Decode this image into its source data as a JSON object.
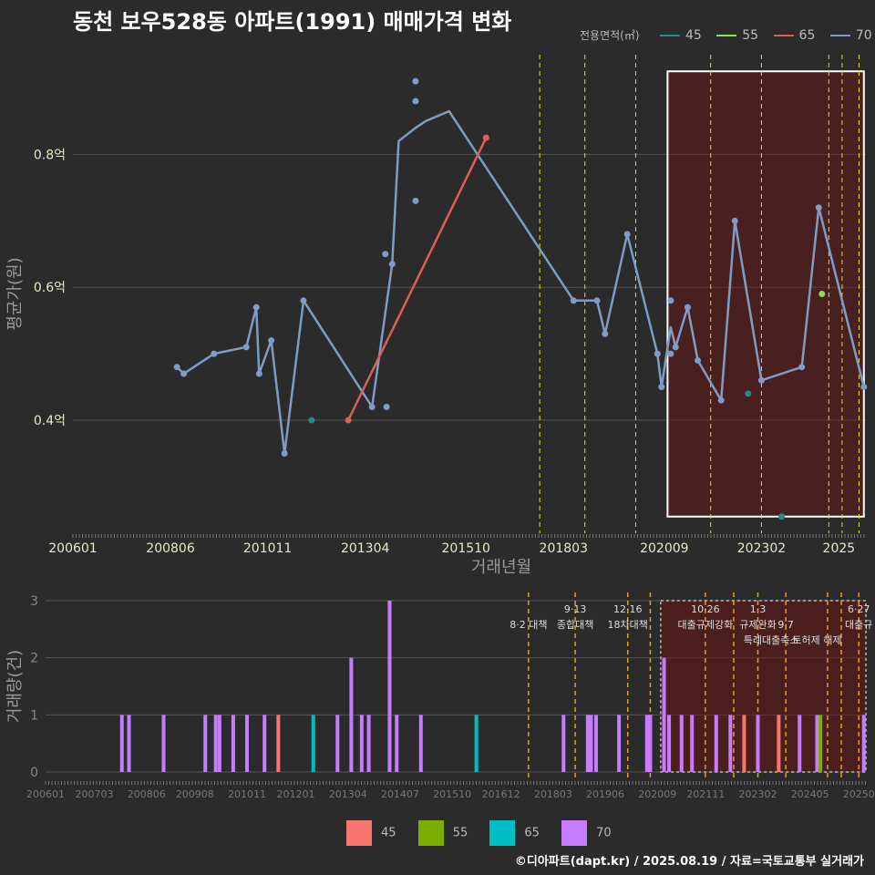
{
  "title": "동천 보우528동 아파트(1991) 매매가격 변화",
  "footer": "©디아파트(dapt.kr) / 2025.08.19 / 자료=국토교통부 실거래가",
  "colors": {
    "45": "#f8766d",
    "55": "#7cae00",
    "65": "#00bfc4",
    "70": "#c77cff"
  },
  "line_colors": {
    "45": "#2a8a8a",
    "55": "#8ee05a",
    "65": "#d95f5f",
    "70": "#7f9cc4"
  },
  "legend_title": "전용면적(㎡)",
  "legend_items": [
    "45",
    "55",
    "65",
    "70"
  ],
  "chart_data": [
    {
      "type": "line",
      "ylabel": "평균가(원)",
      "xlabel": "거래년월",
      "ytick_labels": [
        "0.4억",
        "0.6억",
        "0.8억"
      ],
      "yticks": [
        0.4,
        0.6,
        0.8
      ],
      "ylim": [
        0.23,
        0.95
      ],
      "xlim": [
        2006.0,
        2025.67
      ],
      "xtick_labels": [
        "200601",
        "200806",
        "201011",
        "201304",
        "201510",
        "201803",
        "202009",
        "202302",
        "2025"
      ],
      "xticks": [
        2006.0,
        2008.42,
        2010.83,
        2013.25,
        2015.75,
        2018.17,
        2020.67,
        2023.08,
        2025.0
      ],
      "grid": true,
      "legend": "top-right",
      "series": [
        {
          "name": "70",
          "line": [
            [
              2008.58,
              0.48
            ],
            [
              2008.75,
              0.47
            ],
            [
              2009.5,
              0.5
            ],
            [
              2010.3,
              0.51
            ],
            [
              2010.55,
              0.57
            ],
            [
              2010.62,
              0.47
            ],
            [
              2010.92,
              0.52
            ],
            [
              2011.25,
              0.35
            ],
            [
              2011.72,
              0.58
            ],
            [
              2013.42,
              0.42
            ],
            [
              2013.92,
              0.635
            ],
            [
              2014.08,
              0.82
            ],
            [
              2014.5,
              0.84
            ],
            [
              2014.75,
              0.85
            ],
            [
              2015.33,
              0.865
            ],
            [
              2018.42,
              0.58
            ],
            [
              2019.0,
              0.58
            ],
            [
              2019.2,
              0.53
            ],
            [
              2019.75,
              0.68
            ],
            [
              2020.5,
              0.5
            ],
            [
              2020.6,
              0.45
            ],
            [
              2020.83,
              0.54
            ],
            [
              2020.95,
              0.51
            ],
            [
              2021.25,
              0.57
            ],
            [
              2021.5,
              0.49
            ],
            [
              2022.08,
              0.43
            ],
            [
              2022.42,
              0.7
            ],
            [
              2023.08,
              0.46
            ],
            [
              2024.08,
              0.48
            ],
            [
              2024.5,
              0.72
            ],
            [
              2025.62,
              0.45
            ]
          ],
          "points": [
            [
              2008.58,
              0.48
            ],
            [
              2008.75,
              0.47
            ],
            [
              2009.5,
              0.5
            ],
            [
              2010.3,
              0.51
            ],
            [
              2010.55,
              0.57
            ],
            [
              2010.62,
              0.47
            ],
            [
              2010.92,
              0.52
            ],
            [
              2011.25,
              0.35
            ],
            [
              2011.72,
              0.58
            ],
            [
              2013.42,
              0.42
            ],
            [
              2013.75,
              0.65
            ],
            [
              2013.78,
              0.42
            ],
            [
              2013.92,
              0.635
            ],
            [
              2014.5,
              0.91
            ],
            [
              2014.5,
              0.88
            ],
            [
              2014.5,
              0.73
            ],
            [
              2018.42,
              0.58
            ],
            [
              2019.0,
              0.58
            ],
            [
              2019.2,
              0.53
            ],
            [
              2019.75,
              0.68
            ],
            [
              2020.5,
              0.5
            ],
            [
              2020.6,
              0.45
            ],
            [
              2020.83,
              0.5
            ],
            [
              2020.83,
              0.58
            ],
            [
              2020.95,
              0.51
            ],
            [
              2021.25,
              0.57
            ],
            [
              2021.5,
              0.49
            ],
            [
              2022.08,
              0.43
            ],
            [
              2022.42,
              0.7
            ],
            [
              2023.08,
              0.46
            ],
            [
              2024.08,
              0.48
            ],
            [
              2024.5,
              0.72
            ],
            [
              2025.62,
              0.45
            ]
          ]
        },
        {
          "name": "65",
          "line": [
            [
              2012.83,
              0.4
            ],
            [
              2016.25,
              0.825
            ]
          ],
          "points": [
            [
              2012.83,
              0.4
            ],
            [
              2016.25,
              0.825
            ]
          ]
        },
        {
          "name": "55",
          "line": [],
          "points": [
            [
              2024.58,
              0.59
            ]
          ]
        },
        {
          "name": "45",
          "line": [],
          "points": [
            [
              2011.92,
              0.4
            ],
            [
              2022.75,
              0.44
            ],
            [
              2023.58,
              0.255
            ]
          ]
        }
      ],
      "vlines": [
        2017.58,
        2018.7,
        2019.96,
        2021.82,
        2023.08,
        2024.75,
        2025.08,
        2025.5
      ],
      "highlight_box": [
        2020.75,
        2025.62,
        0.255,
        0.925
      ]
    },
    {
      "type": "bar",
      "ylabel": "거래량(건)",
      "yticks": [
        0,
        1,
        2,
        3
      ],
      "ytick_labels": [
        "0",
        "1",
        "2",
        "3"
      ],
      "xtick_labels": [
        "200601",
        "200703",
        "200806",
        "200908",
        "201011",
        "201201",
        "201304",
        "201407",
        "201510",
        "201612",
        "201803",
        "201906",
        "202009",
        "202111",
        "202302",
        "202405",
        "20250"
      ],
      "xticks": [
        2006.0,
        2007.17,
        2008.42,
        2009.58,
        2010.83,
        2012.0,
        2013.25,
        2014.5,
        2015.75,
        2016.92,
        2018.17,
        2019.42,
        2020.67,
        2021.83,
        2023.08,
        2024.33,
        2025.5
      ],
      "xlim": [
        2006.0,
        2025.67
      ],
      "bars": [
        {
          "x": 2007.83,
          "v": 1,
          "s": "70"
        },
        {
          "x": 2008.0,
          "v": 1,
          "s": "70"
        },
        {
          "x": 2008.83,
          "v": 1,
          "s": "70"
        },
        {
          "x": 2009.83,
          "v": 1,
          "s": "70"
        },
        {
          "x": 2010.08,
          "v": 1,
          "s": "70"
        },
        {
          "x": 2010.17,
          "v": 1,
          "s": "70"
        },
        {
          "x": 2010.5,
          "v": 1,
          "s": "70"
        },
        {
          "x": 2010.83,
          "v": 1,
          "s": "70"
        },
        {
          "x": 2011.25,
          "v": 1,
          "s": "70"
        },
        {
          "x": 2011.58,
          "v": 1,
          "s": "45"
        },
        {
          "x": 2012.42,
          "v": 1,
          "s": "65"
        },
        {
          "x": 2013.0,
          "v": 1,
          "s": "70"
        },
        {
          "x": 2013.33,
          "v": 2,
          "s": "70"
        },
        {
          "x": 2013.58,
          "v": 1,
          "s": "70"
        },
        {
          "x": 2013.75,
          "v": 1,
          "s": "70"
        },
        {
          "x": 2014.25,
          "v": 3,
          "s": "70"
        },
        {
          "x": 2014.42,
          "v": 1,
          "s": "70"
        },
        {
          "x": 2015.0,
          "v": 1,
          "s": "70"
        },
        {
          "x": 2016.33,
          "v": 1,
          "s": "65"
        },
        {
          "x": 2018.42,
          "v": 1,
          "s": "70"
        },
        {
          "x": 2019.0,
          "v": 1,
          "s": "70"
        },
        {
          "x": 2019.08,
          "v": 1,
          "s": "70"
        },
        {
          "x": 2019.2,
          "v": 1,
          "s": "70"
        },
        {
          "x": 2019.75,
          "v": 1,
          "s": "70"
        },
        {
          "x": 2020.42,
          "v": 1,
          "s": "70"
        },
        {
          "x": 2020.5,
          "v": 1,
          "s": "70"
        },
        {
          "x": 2020.83,
          "v": 2,
          "s": "70"
        },
        {
          "x": 2020.95,
          "v": 1,
          "s": "70"
        },
        {
          "x": 2021.25,
          "v": 1,
          "s": "70"
        },
        {
          "x": 2021.5,
          "v": 1,
          "s": "70"
        },
        {
          "x": 2022.08,
          "v": 1,
          "s": "70"
        },
        {
          "x": 2022.42,
          "v": 1,
          "s": "70"
        },
        {
          "x": 2022.75,
          "v": 1,
          "s": "45"
        },
        {
          "x": 2023.08,
          "v": 1,
          "s": "70"
        },
        {
          "x": 2023.58,
          "v": 1,
          "s": "45"
        },
        {
          "x": 2024.08,
          "v": 1,
          "s": "70"
        },
        {
          "x": 2024.5,
          "v": 1,
          "s": "70"
        },
        {
          "x": 2024.58,
          "v": 1,
          "s": "55"
        },
        {
          "x": 2025.62,
          "v": 1,
          "s": "70"
        }
      ],
      "vlines": [
        2017.58,
        2018.7,
        2019.96,
        2020.5,
        2021.82,
        2022.5,
        2023.08,
        2023.75,
        2024.75,
        2025.08,
        2025.5
      ],
      "highlight_box": [
        2020.75,
        2025.67,
        0,
        3
      ],
      "annotations": [
        {
          "x": 2017.58,
          "lines": [
            "",
            "8·2 대책"
          ]
        },
        {
          "x": 2018.7,
          "lines": [
            "9·13",
            "종합대책"
          ]
        },
        {
          "x": 2019.96,
          "lines": [
            "12·16",
            "18차대책"
          ]
        },
        {
          "x": 2021.82,
          "lines": [
            "10·26",
            "대출규제강화"
          ]
        },
        {
          "x": 2023.08,
          "lines": [
            "1·3",
            "규제완화"
          ]
        },
        {
          "x": 2023.75,
          "lines": [
            "",
            "9·7"
          ]
        },
        {
          "x": 2023.4,
          "lines": [
            "",
            "",
            "특례대출축소"
          ]
        },
        {
          "x": 2024.5,
          "lines": [
            "",
            "",
            "토허제 해제"
          ]
        },
        {
          "x": 2025.5,
          "lines": [
            "6·27",
            "대출규"
          ]
        }
      ]
    }
  ]
}
